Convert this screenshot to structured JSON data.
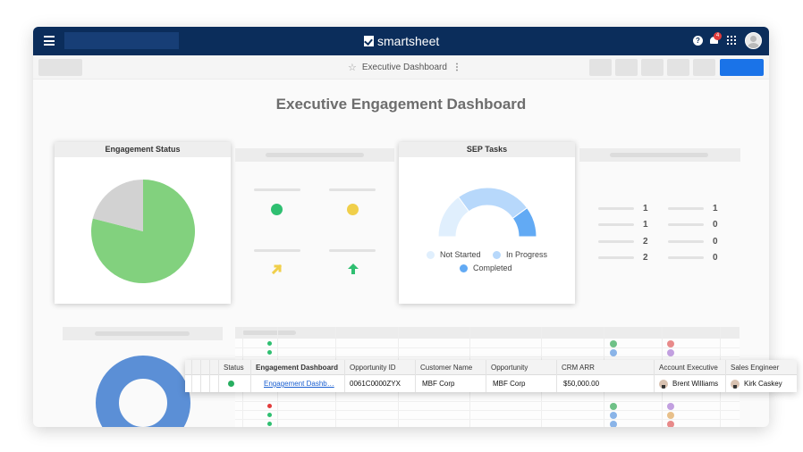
{
  "app": {
    "brand": "smartsheet",
    "notification_count": "4"
  },
  "subbar": {
    "sheet_title": "Executive Dashboard"
  },
  "dashboard": {
    "title": "Executive Engagement Dashboard",
    "engagement_status": {
      "title": "Engagement Status",
      "chart_data": {
        "type": "pie",
        "title": "Engagement Status",
        "slices": [
          {
            "value": 0.79,
            "color": "#82d17e"
          },
          {
            "value": 0.21,
            "color": "#d2d2d2"
          }
        ]
      }
    },
    "sep_tasks": {
      "title": "SEP Tasks",
      "chart_data": {
        "type": "pie",
        "title": "SEP Tasks",
        "variant": "half-donut",
        "slices": [
          {
            "name": "Not Started",
            "value": 0.3,
            "color": "#e0effd"
          },
          {
            "name": "In Progress",
            "value": 0.5,
            "color": "#b7d8fb"
          },
          {
            "name": "Completed",
            "value": 0.2,
            "color": "#62aaf4"
          }
        ]
      },
      "legend": [
        "Not Started",
        "In Progress",
        "Completed"
      ],
      "legend_colors": [
        "#e0effd",
        "#b7d8fb",
        "#62aaf4"
      ]
    },
    "metrics": {
      "col1": [
        "1",
        "1",
        "2",
        "2"
      ],
      "col2": [
        "1",
        "0",
        "0",
        "0"
      ]
    },
    "indicators": {
      "dot_left_color": "#2fbf71",
      "dot_right_color": "#f0cf4a",
      "arrow_left_color": "#f0cf4a",
      "arrow_right_color": "#2fbf71"
    }
  },
  "table": {
    "headers": [
      "Status",
      "Engagement Dashboard",
      "Opportunity ID",
      "Customer Name",
      "Opportunity",
      "CRM ARR",
      "Account Executive",
      "Sales Engineer"
    ],
    "row": {
      "status_color": "#27ae60",
      "engagement_dashboard": "Engagement Dashb…",
      "opportunity_id": "0061C0000ZYX",
      "customer_name": "MBF Corp",
      "opportunity": "MBF Corp",
      "crm_arr": "$50,000.00",
      "account_executive": "Brent Williams",
      "sales_engineer": "Kirk Caskey"
    }
  }
}
